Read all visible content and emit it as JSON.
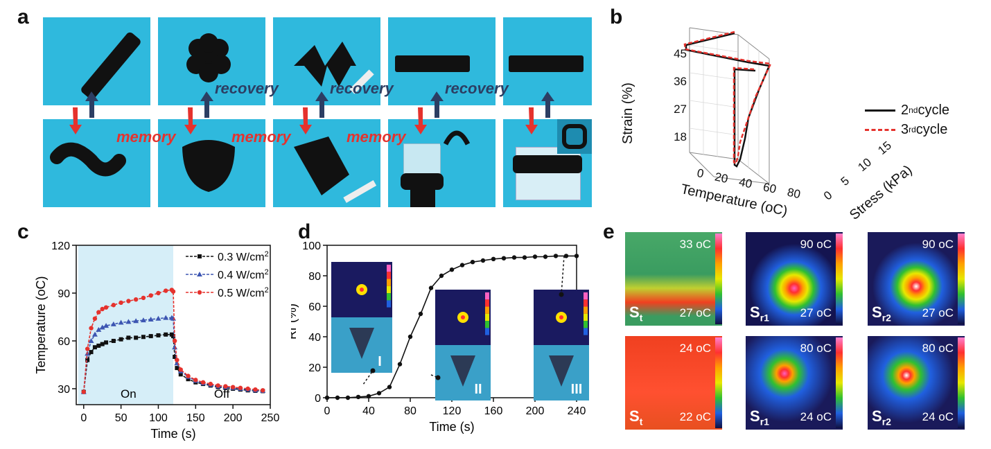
{
  "panels": {
    "a": "a",
    "b": "b",
    "c": "c",
    "d": "d",
    "e": "e"
  },
  "panel_a": {
    "recovery_label": "recovery",
    "memory_label": "memory"
  },
  "chart_data": [
    {
      "id": "b",
      "type": "line",
      "ylabel": "Strain (%)",
      "xlabel": "Temperature (oC)",
      "zlabel": "Stress (kPa)",
      "ytick_labels": [
        "45",
        "36",
        "27",
        "18"
      ],
      "xtick_labels": [
        "0",
        "20",
        "40",
        "60",
        "80"
      ],
      "ztick_labels": [
        "0",
        "5",
        "10",
        "15"
      ],
      "series": [
        {
          "name": "2nd cycle",
          "color": "#000000"
        },
        {
          "name": "3rd cycle",
          "color": "#e5322d"
        }
      ],
      "legend": [
        {
          "base": "2",
          "sup": "nd",
          "rest": " cycle"
        },
        {
          "base": "3",
          "sup": "rd",
          "rest": " cycle"
        }
      ]
    },
    {
      "id": "c",
      "type": "line",
      "xlabel": "Time (s)",
      "ylabel": "Temperature (oC)",
      "xlim": [
        -10,
        250
      ],
      "ylim": [
        20,
        120
      ],
      "xticks": [
        0,
        50,
        100,
        150,
        200,
        250
      ],
      "yticks": [
        30,
        60,
        90,
        120
      ],
      "regions": [
        {
          "label": "On",
          "x0": 0,
          "x1": 120
        },
        {
          "label": "Off",
          "x0": 120,
          "x1": 250
        }
      ],
      "x": [
        0,
        5,
        10,
        15,
        20,
        25,
        30,
        40,
        50,
        60,
        70,
        80,
        90,
        100,
        110,
        118,
        120,
        122,
        125,
        130,
        140,
        150,
        160,
        170,
        180,
        190,
        200,
        210,
        220,
        230,
        240
      ],
      "series": [
        {
          "name": "0.3 W/cm2",
          "color": "#111111",
          "marker": "square",
          "values": [
            28,
            48,
            53,
            56,
            57,
            58,
            59,
            60,
            61,
            62,
            62,
            62.5,
            63,
            63.5,
            64,
            64,
            63,
            50,
            43,
            39,
            36,
            34,
            33,
            32,
            31,
            30.5,
            30,
            29.5,
            29,
            28.7,
            28.5
          ]
        },
        {
          "name": "0.4 W/cm2",
          "color": "#3d56b2",
          "marker": "triangle",
          "values": [
            28,
            52,
            60,
            64,
            67,
            68.5,
            69.5,
            70.5,
            71.5,
            72,
            72.5,
            73,
            73.5,
            74,
            74.5,
            74.5,
            74,
            56,
            46,
            41,
            37.5,
            35,
            33.5,
            32.5,
            31.5,
            31,
            30.5,
            30,
            29.5,
            29,
            28.7
          ]
        },
        {
          "name": "0.5 W/cm2",
          "color": "#e5322d",
          "marker": "circle",
          "values": [
            28,
            55,
            68,
            74,
            78,
            80,
            81,
            82.5,
            84,
            85,
            86,
            87,
            88.5,
            90,
            91.5,
            92,
            91,
            60,
            48,
            42,
            38,
            35.5,
            34,
            33,
            32,
            31.5,
            31,
            30.5,
            30,
            29.5,
            29
          ]
        }
      ],
      "legend": [
        {
          "base": "0.3 W/cm",
          "sup": "2"
        },
        {
          "base": "0.4 W/cm",
          "sup": "2"
        },
        {
          "base": "0.5 W/cm",
          "sup": "2"
        }
      ]
    },
    {
      "id": "d",
      "type": "line",
      "xlabel": "Time (s)",
      "ylabel": "Rr (%)",
      "xlim": [
        0,
        240
      ],
      "ylim": [
        0,
        100
      ],
      "xticks": [
        0,
        40,
        80,
        120,
        160,
        200,
        240
      ],
      "yticks": [
        0,
        20,
        40,
        60,
        80,
        100
      ],
      "x": [
        0,
        10,
        20,
        30,
        40,
        50,
        60,
        70,
        80,
        90,
        100,
        110,
        120,
        130,
        140,
        150,
        160,
        170,
        180,
        190,
        200,
        210,
        220,
        230,
        240
      ],
      "series": [
        {
          "name": "",
          "color": "#111111",
          "values": [
            0,
            0,
            0,
            0.5,
            1,
            3,
            7,
            22,
            40,
            55,
            72,
            80,
            84,
            87,
            89,
            90,
            91,
            91.5,
            92,
            92,
            92.5,
            92.5,
            93,
            93,
            93
          ]
        }
      ],
      "roman_labels": [
        "I",
        "II",
        "III"
      ]
    }
  ],
  "panel_e": {
    "top": [
      {
        "top": "33 oC",
        "bottom": "27 oC",
        "s": "S",
        "sub": "t"
      },
      {
        "top": "90 oC",
        "bottom": "27 oC",
        "s": "S",
        "sub": "r1"
      },
      {
        "top": "90 oC",
        "bottom": "27 oC",
        "s": "S",
        "sub": "r2"
      }
    ],
    "bottom": [
      {
        "top": "24 oC",
        "bottom": "22 oC",
        "s": "S",
        "sub": "t"
      },
      {
        "top": "80 oC",
        "bottom": "24 oC",
        "s": "S",
        "sub": "r1"
      },
      {
        "top": "80 oC",
        "bottom": "24 oC",
        "s": "S",
        "sub": "r2"
      }
    ]
  },
  "colors": {
    "photo_bg": "#2fb9dd",
    "recovery_arrow": "#2c3e63",
    "memory_arrow": "#e5322d",
    "on_region": "#d6eef8"
  }
}
